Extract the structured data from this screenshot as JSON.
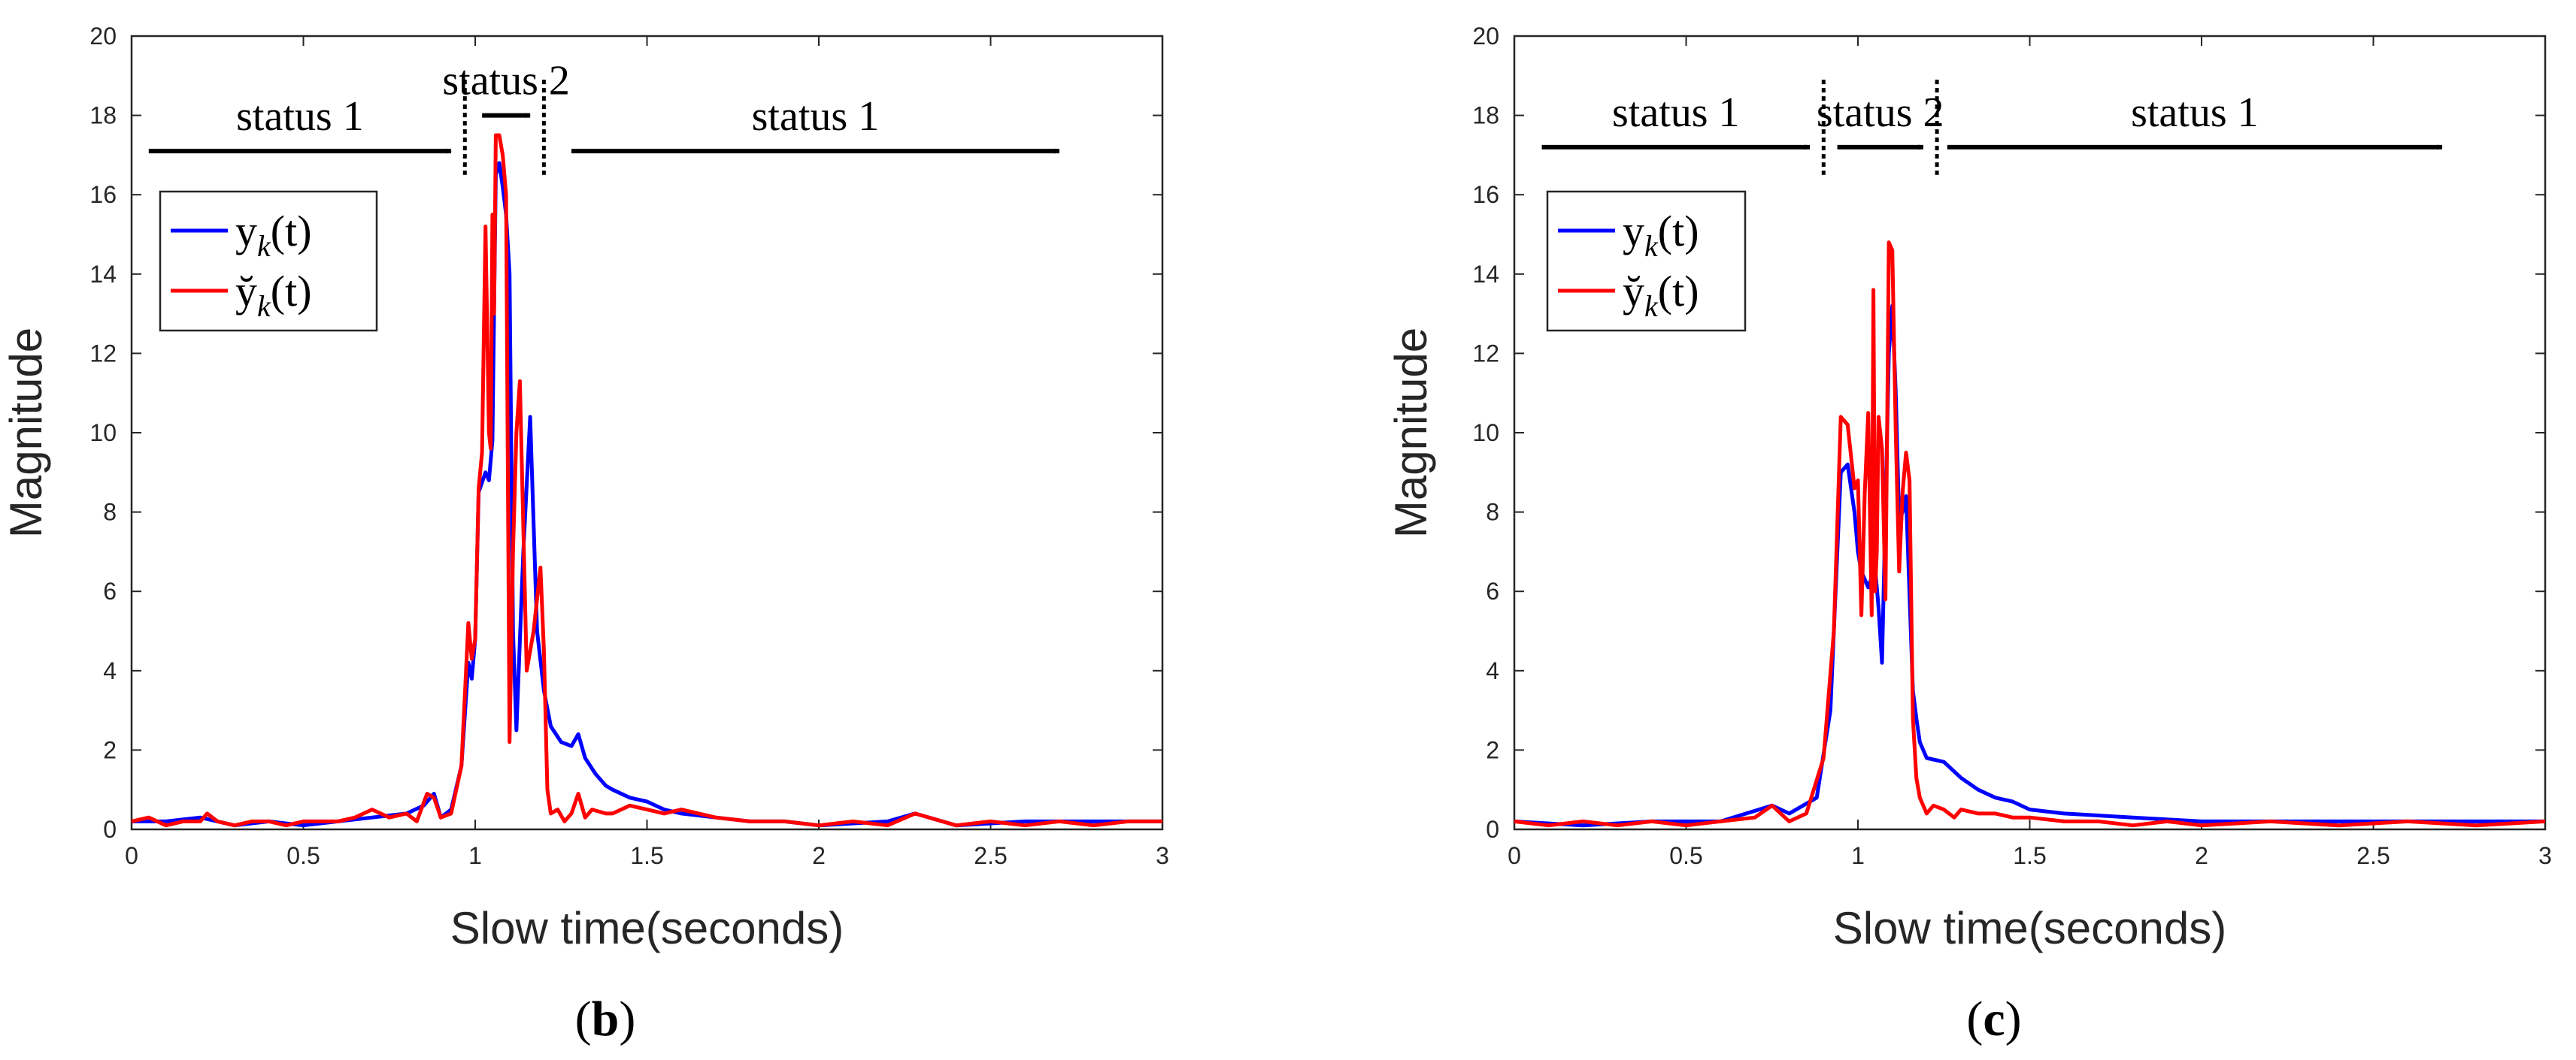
{
  "chart_data": [
    {
      "type": "line",
      "panel_label": "b",
      "xlabel": "Slow time(seconds)",
      "ylabel": "Magnitude",
      "xlim": [
        0,
        3
      ],
      "ylim": [
        0,
        20
      ],
      "xticks": [
        0,
        0.5,
        1,
        1.5,
        2,
        2.5,
        3
      ],
      "xtick_labels": [
        "0",
        "0.5",
        "1",
        "1.5",
        "2",
        "2.5",
        "3"
      ],
      "yticks": [
        0,
        2,
        4,
        6,
        8,
        10,
        12,
        14,
        16,
        18,
        20
      ],
      "ytick_labels": [
        "0",
        "2",
        "4",
        "6",
        "8",
        "10",
        "12",
        "14",
        "16",
        "18",
        "20"
      ],
      "legend": {
        "placement": "upper-left",
        "entries": [
          {
            "series": "y",
            "label_main": "y",
            "label_sub": "k",
            "label_arg": "(t)"
          },
          {
            "series": "ycheck",
            "label_main": "y̆",
            "label_sub": "k",
            "label_arg": "(t)"
          }
        ]
      },
      "status_annotations": [
        {
          "label": "status 1",
          "from": 0.05,
          "to": 0.93,
          "y": 17.1
        },
        {
          "label": "status 2",
          "from": 1.02,
          "to": 1.16,
          "y": 18.0
        },
        {
          "label": "status 1",
          "from": 1.28,
          "to": 2.7,
          "y": 17.1
        }
      ],
      "status_boundaries": [
        0.97,
        1.2
      ],
      "series": [
        {
          "name": "y",
          "color": "#0000ff",
          "x": [
            0.0,
            0.1,
            0.2,
            0.3,
            0.4,
            0.5,
            0.6,
            0.7,
            0.8,
            0.85,
            0.88,
            0.9,
            0.93,
            0.96,
            0.98,
            0.99,
            1.0,
            1.01,
            1.03,
            1.04,
            1.05,
            1.06,
            1.07,
            1.08,
            1.09,
            1.1,
            1.11,
            1.12,
            1.14,
            1.16,
            1.18,
            1.2,
            1.22,
            1.25,
            1.28,
            1.3,
            1.32,
            1.35,
            1.38,
            1.4,
            1.45,
            1.5,
            1.55,
            1.6,
            1.7,
            1.8,
            1.9,
            2.0,
            2.2,
            2.28,
            2.4,
            2.6,
            2.8,
            3.0
          ],
          "y": [
            0.2,
            0.2,
            0.3,
            0.1,
            0.2,
            0.1,
            0.2,
            0.3,
            0.4,
            0.6,
            0.9,
            0.3,
            0.5,
            1.6,
            4.2,
            3.8,
            4.8,
            8.5,
            9.0,
            8.8,
            9.8,
            16.5,
            16.8,
            16.2,
            15.5,
            14.0,
            5.0,
            2.5,
            7.0,
            10.4,
            5.0,
            3.5,
            2.6,
            2.2,
            2.1,
            2.4,
            1.8,
            1.4,
            1.1,
            1.0,
            0.8,
            0.7,
            0.5,
            0.4,
            0.3,
            0.2,
            0.2,
            0.1,
            0.2,
            0.4,
            0.1,
            0.2,
            0.2,
            0.2
          ]
        },
        {
          "name": "ycheck",
          "color": "#ff0000",
          "x": [
            0.0,
            0.05,
            0.1,
            0.15,
            0.2,
            0.22,
            0.25,
            0.3,
            0.35,
            0.4,
            0.45,
            0.5,
            0.55,
            0.6,
            0.65,
            0.7,
            0.75,
            0.8,
            0.83,
            0.86,
            0.88,
            0.9,
            0.93,
            0.96,
            0.98,
            0.99,
            1.0,
            1.01,
            1.02,
            1.03,
            1.04,
            1.045,
            1.05,
            1.055,
            1.06,
            1.07,
            1.08,
            1.09,
            1.1,
            1.11,
            1.12,
            1.13,
            1.15,
            1.17,
            1.19,
            1.2,
            1.21,
            1.22,
            1.24,
            1.26,
            1.28,
            1.3,
            1.32,
            1.34,
            1.38,
            1.4,
            1.45,
            1.5,
            1.55,
            1.6,
            1.7,
            1.8,
            1.9,
            2.0,
            2.1,
            2.2,
            2.28,
            2.4,
            2.5,
            2.6,
            2.7,
            2.8,
            2.9,
            3.0
          ],
          "y": [
            0.2,
            0.3,
            0.1,
            0.2,
            0.2,
            0.4,
            0.2,
            0.1,
            0.2,
            0.2,
            0.1,
            0.2,
            0.2,
            0.2,
            0.3,
            0.5,
            0.3,
            0.4,
            0.2,
            0.9,
            0.8,
            0.3,
            0.4,
            1.6,
            5.2,
            4.3,
            4.8,
            8.6,
            9.5,
            15.2,
            10.0,
            9.6,
            15.5,
            13.0,
            17.5,
            17.5,
            17.0,
            16.0,
            2.2,
            7.0,
            10.0,
            11.3,
            4.0,
            5.0,
            6.6,
            4.5,
            1.0,
            0.4,
            0.5,
            0.2,
            0.4,
            0.9,
            0.3,
            0.5,
            0.4,
            0.4,
            0.6,
            0.5,
            0.4,
            0.5,
            0.3,
            0.2,
            0.2,
            0.1,
            0.2,
            0.1,
            0.4,
            0.1,
            0.2,
            0.1,
            0.2,
            0.1,
            0.2,
            0.2
          ]
        }
      ]
    },
    {
      "type": "line",
      "panel_label": "c",
      "xlabel": "Slow time(seconds)",
      "ylabel": "Magnitude",
      "xlim": [
        0,
        3
      ],
      "ylim": [
        0,
        20
      ],
      "xticks": [
        0,
        0.5,
        1,
        1.5,
        2,
        2.5,
        3
      ],
      "xtick_labels": [
        "0",
        "0.5",
        "1",
        "1.5",
        "2",
        "2.5",
        "3"
      ],
      "yticks": [
        0,
        2,
        4,
        6,
        8,
        10,
        12,
        14,
        16,
        18,
        20
      ],
      "ytick_labels": [
        "0",
        "2",
        "4",
        "6",
        "8",
        "10",
        "12",
        "14",
        "16",
        "18",
        "20"
      ],
      "legend": {
        "placement": "upper-left",
        "entries": [
          {
            "series": "y",
            "label_main": "y",
            "label_sub": "k",
            "label_arg": "(t)"
          },
          {
            "series": "ycheck",
            "label_main": "y̆",
            "label_sub": "k",
            "label_arg": "(t)"
          }
        ]
      },
      "status_annotations": [
        {
          "label": "status 1",
          "from": 0.08,
          "to": 0.86,
          "y": 17.2
        },
        {
          "label": "status 2",
          "from": 0.94,
          "to": 1.19,
          "y": 17.2
        },
        {
          "label": "status 1",
          "from": 1.26,
          "to": 2.7,
          "y": 17.2
        }
      ],
      "status_boundaries": [
        0.9,
        1.23
      ],
      "series": [
        {
          "name": "y",
          "color": "#0000ff",
          "x": [
            0.0,
            0.2,
            0.4,
            0.6,
            0.75,
            0.8,
            0.88,
            0.92,
            0.95,
            0.97,
            0.99,
            1.0,
            1.01,
            1.02,
            1.03,
            1.05,
            1.06,
            1.07,
            1.08,
            1.09,
            1.1,
            1.11,
            1.12,
            1.13,
            1.14,
            1.16,
            1.17,
            1.18,
            1.2,
            1.25,
            1.3,
            1.35,
            1.4,
            1.45,
            1.5,
            1.6,
            1.8,
            2.0,
            2.4,
            2.8,
            3.0
          ],
          "y": [
            0.2,
            0.1,
            0.2,
            0.2,
            0.6,
            0.4,
            0.8,
            3.0,
            9.0,
            9.2,
            8.0,
            7.0,
            6.5,
            6.3,
            6.1,
            6.6,
            5.6,
            4.2,
            8.0,
            12.0,
            13.2,
            11.0,
            7.8,
            8.0,
            8.4,
            3.5,
            2.8,
            2.2,
            1.8,
            1.7,
            1.3,
            1.0,
            0.8,
            0.7,
            0.5,
            0.4,
            0.3,
            0.2,
            0.2,
            0.2,
            0.2
          ]
        },
        {
          "name": "ycheck",
          "color": "#ff0000",
          "x": [
            0.0,
            0.1,
            0.2,
            0.3,
            0.4,
            0.5,
            0.6,
            0.7,
            0.75,
            0.8,
            0.85,
            0.9,
            0.93,
            0.95,
            0.97,
            0.99,
            1.0,
            1.01,
            1.02,
            1.03,
            1.04,
            1.045,
            1.05,
            1.055,
            1.06,
            1.07,
            1.08,
            1.085,
            1.09,
            1.1,
            1.11,
            1.12,
            1.13,
            1.14,
            1.15,
            1.16,
            1.17,
            1.18,
            1.2,
            1.22,
            1.25,
            1.28,
            1.3,
            1.35,
            1.4,
            1.45,
            1.5,
            1.6,
            1.7,
            1.8,
            1.9,
            2.0,
            2.2,
            2.4,
            2.6,
            2.8,
            3.0
          ],
          "y": [
            0.2,
            0.1,
            0.2,
            0.1,
            0.2,
            0.1,
            0.2,
            0.3,
            0.6,
            0.2,
            0.4,
            1.8,
            5.0,
            10.4,
            10.2,
            8.6,
            8.8,
            5.4,
            8.5,
            10.5,
            5.4,
            13.6,
            6.0,
            7.0,
            10.4,
            9.6,
            5.8,
            10.0,
            14.8,
            14.6,
            10.0,
            6.5,
            8.5,
            9.5,
            8.8,
            2.8,
            1.3,
            0.8,
            0.4,
            0.6,
            0.5,
            0.3,
            0.5,
            0.4,
            0.4,
            0.3,
            0.3,
            0.2,
            0.2,
            0.1,
            0.2,
            0.1,
            0.2,
            0.1,
            0.2,
            0.1,
            0.2
          ]
        }
      ]
    }
  ]
}
